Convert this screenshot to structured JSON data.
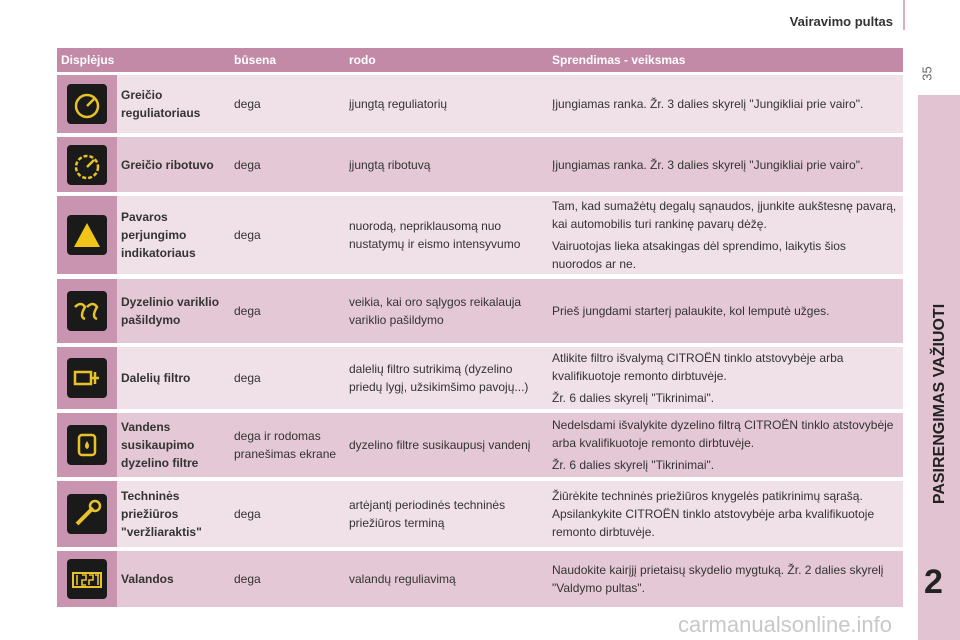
{
  "header": {
    "title": "Vairavimo pultas",
    "page_number": "35"
  },
  "sidebar": {
    "section": "PASIRENGIMAS VAŽIUOTI",
    "chapter": "2"
  },
  "table": {
    "columns": [
      "Displėjus",
      "būsena",
      "rodo",
      "Sprendimas - veiksmas"
    ],
    "rows": [
      {
        "name": "Greičio reguliatoriaus",
        "state": "dega",
        "shows": "įjungtą reguliatorių",
        "action": [
          "Įjungiamas ranka. Žr. 3 dalies skyrelį \"Jungikliai prie vairo\"."
        ]
      },
      {
        "name": "Greičio ribotuvo",
        "state": "dega",
        "shows": "įjungtą ribotuvą",
        "action": [
          "Įjungiamas ranka. Žr. 3 dalies skyrelį \"Jungikliai prie vairo\"."
        ]
      },
      {
        "name": "Pavaros perjungimo indikatoriaus",
        "state": "dega",
        "shows": "nuorodą, nepriklausomą nuo nustatymų ir eismo intensyvumo",
        "action": [
          "Tam, kad sumažėtų degalų sąnaudos, įjunkite aukštesnę pavarą, kai automobilis turi rankinę pavarų dėžę.",
          "Vairuotojas lieka atsakingas dėl sprendimo, laikytis šios nuorodos ar ne."
        ]
      },
      {
        "name": "Dyzelinio variklio pašildymo",
        "state": "dega",
        "shows": "veikia, kai oro sąlygos reikalauja variklio pašildymo",
        "action": [
          "Prieš jungdami starterį palaukite, kol lemputė užges."
        ]
      },
      {
        "name": "Dalelių filtro",
        "state": "dega",
        "shows": "dalelių filtro sutrikimą (dyzelino priedų lygį, užsikimšimo pavojų...)",
        "action": [
          "Atlikite filtro išvalymą CITROËN tinklo atstovybėje arba kvalifikuotoje remonto dirbtuvėje.",
          "Žr. 6 dalies skyrelį \"Tikrinimai\"."
        ]
      },
      {
        "name": "Vandens susikaupimo dyzelino filtre",
        "state": "dega ir rodomas pranešimas ekrane",
        "shows": "dyzelino filtre susikaupusį vandenį",
        "action": [
          "Nedelsdami išvalykite dyzelino filtrą CITROËN tinklo atstovybėje arba kvalifikuotoje remonto dirbtuvėje.",
          "Žr. 6 dalies skyrelį \"Tikrinimai\"."
        ]
      },
      {
        "name": "Techninės priežiūros \"veržliaraktis\"",
        "state": "dega",
        "shows": "artėjantį periodinės techninės priežiūros terminą",
        "action": [
          "Žiūrėkite techninės priežiūros knygelės patikrinimų sąrašą. Apsilankykite CITROËN tinklo atstovybėje arba kvalifikuotoje remonto dirbtuvėje."
        ]
      },
      {
        "name": "Valandos",
        "state": "dega",
        "shows": "valandų reguliavimą",
        "action": [
          "Naudokite kairįjį prietaisų skydelio mygtuką. Žr. 2 dalies skyrelį \"Valdymo pultas\"."
        ]
      }
    ]
  },
  "watermark": "carmanualsonline.info"
}
